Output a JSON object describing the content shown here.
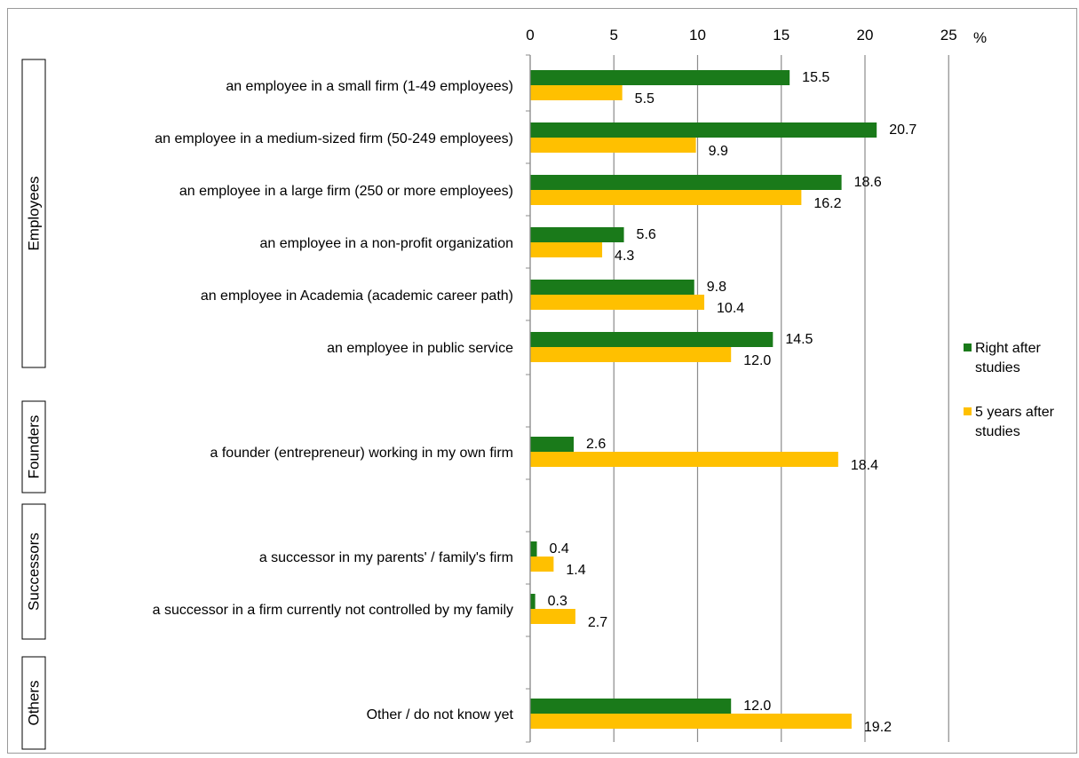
{
  "chart_data": {
    "type": "bar",
    "orientation": "horizontal",
    "unit": "%",
    "xlim": [
      0,
      25
    ],
    "xticks": [
      0,
      5,
      10,
      15,
      20,
      25
    ],
    "grid": true,
    "legend_position": "right",
    "groups": [
      {
        "name": "Employees",
        "categories": [
          "an employee in a small firm (1-49 employees)",
          "an employee in a medium-sized firm (50-249 employees)",
          "an employee in a large firm (250 or more employees)",
          "an employee in a non-profit organization",
          "an employee in Academia (academic career path)",
          "an employee in public service"
        ]
      },
      {
        "name": "Founders",
        "categories": [
          "a founder (entrepreneur) working in my own firm"
        ]
      },
      {
        "name": "Successors",
        "categories": [
          "a successor in my parents' / family's firm",
          "a successor in a firm currently not controlled by my family"
        ]
      },
      {
        "name": "Others",
        "categories": [
          "Other / do not know yet"
        ]
      }
    ],
    "categories": [
      "an employee in a small firm (1-49 employees)",
      "an employee in a medium-sized firm (50-249 employees)",
      "an employee in a large firm (250 or more employees)",
      "an employee in a non-profit organization",
      "an employee in Academia (academic career path)",
      "an employee in public service",
      "a founder (entrepreneur) working in my own firm",
      "a successor in my parents' / family's firm",
      "a successor in a firm currently not controlled by my family",
      "Other / do not know yet"
    ],
    "series": [
      {
        "name": "Right after studies",
        "color": "#1a7a1a",
        "values": [
          15.5,
          20.7,
          18.6,
          5.6,
          9.8,
          14.5,
          2.6,
          0.4,
          0.3,
          12.0
        ],
        "labels": [
          "15.5",
          "20.7",
          "18.6",
          "5.6",
          "9.8",
          "14.5",
          "2.6",
          "0.4",
          "0.3",
          "12.0"
        ]
      },
      {
        "name": "5 years after studies",
        "color": "#ffc000",
        "values": [
          5.5,
          9.9,
          16.2,
          4.3,
          10.4,
          12.0,
          18.4,
          1.4,
          2.7,
          19.2
        ],
        "labels": [
          "5.5",
          "9.9",
          "16.2",
          "4.3",
          "10.4",
          "12.0",
          "18.4",
          "1.4",
          "2.7",
          "19.2"
        ]
      }
    ],
    "legend": {
      "lines": [
        [
          "Right after",
          "studies"
        ],
        [
          "5 years after",
          "studies"
        ]
      ]
    }
  }
}
